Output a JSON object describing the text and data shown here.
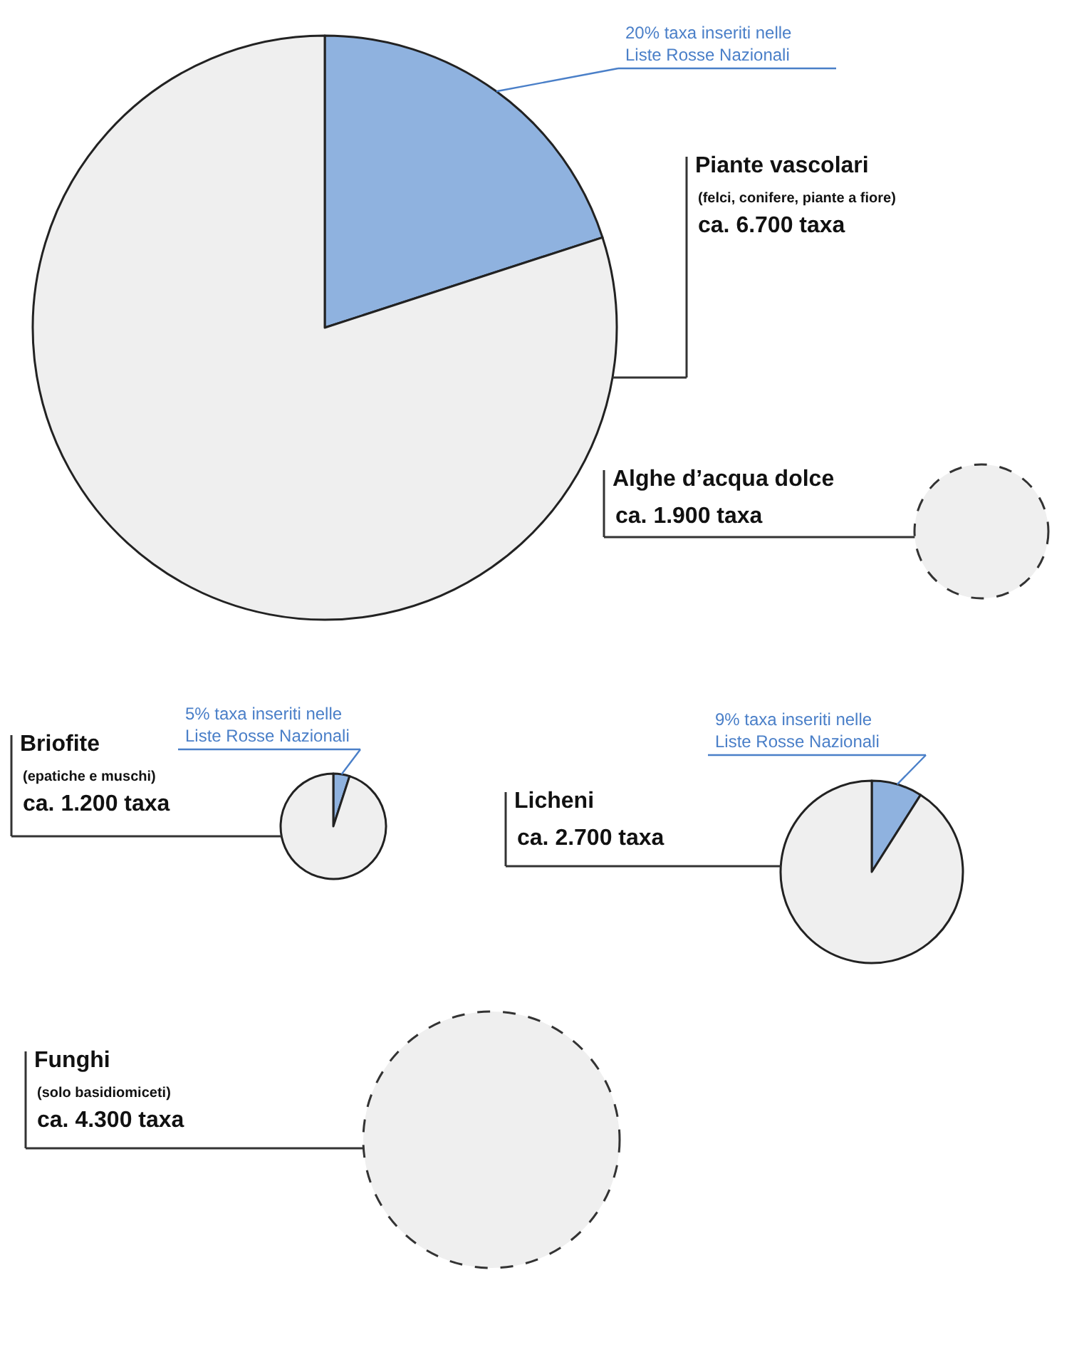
{
  "chart_data": [
    {
      "type": "pie",
      "title": "Piante vascolari",
      "subtitle": "(felci, conifere, piante a fiore)",
      "annotations": [
        "ca. 6.700 taxa"
      ],
      "categories": [
        "20% taxa inseriti nelle Liste Rosse Nazionali",
        null
      ],
      "values": [
        20,
        80
      ],
      "colors": [
        "#8fb2df",
        "#efefef"
      ]
    },
    {
      "type": "pie",
      "title": "Alghe d’acqua dolce",
      "annotations": [
        "ca. 1.900 taxa"
      ],
      "categories": [
        null
      ],
      "values": [
        100
      ],
      "colors": [
        "#efefef"
      ],
      "line_style": "dashed"
    },
    {
      "type": "pie",
      "title": "Briofite",
      "subtitle": "(epatiche e muschi)",
      "annotations": [
        "ca. 1.200 taxa"
      ],
      "categories": [
        "5% taxa inseriti nelle Liste Rosse Nazionali",
        null
      ],
      "values": [
        5,
        95
      ],
      "colors": [
        "#8fb2df",
        "#efefef"
      ]
    },
    {
      "type": "pie",
      "title": "Licheni",
      "annotations": [
        "ca. 2.700 taxa"
      ],
      "categories": [
        "9% taxa inseriti nelle Liste Rosse Nazionali",
        null
      ],
      "values": [
        9,
        91
      ],
      "colors": [
        "#8fb2df",
        "#efefef"
      ]
    },
    {
      "type": "pie",
      "title": "Funghi",
      "subtitle": "(solo basidiomiceti)",
      "annotations": [
        "ca. 4.300 taxa"
      ],
      "categories": [
        null
      ],
      "values": [
        100
      ],
      "colors": [
        "#efefef"
      ],
      "line_style": "dashed"
    }
  ]
}
